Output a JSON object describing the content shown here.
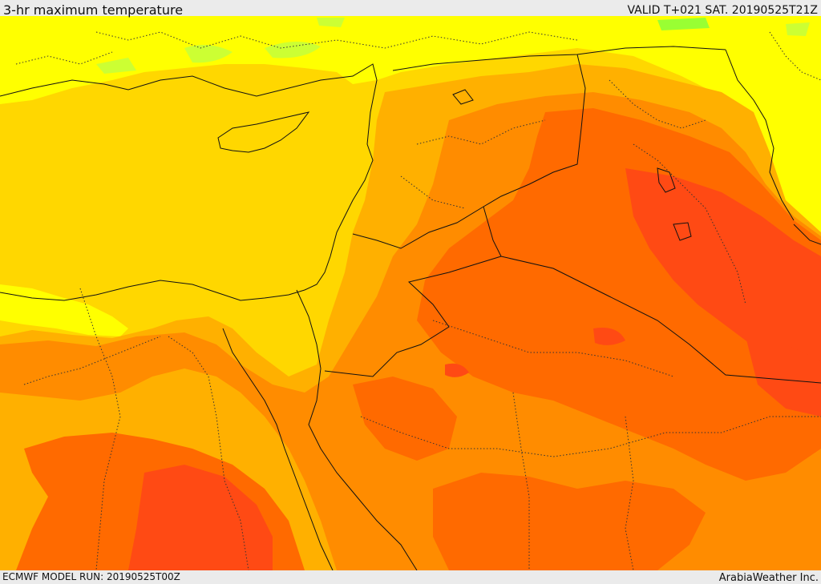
{
  "header": {
    "title": "3-hr maximum temperature",
    "valid": "VALID T+021 SAT. 20190525T21Z"
  },
  "footer": {
    "model_run": "ECMWF MODEL RUN: 20190525T00Z",
    "credit": "ArabiaWeather Inc."
  },
  "palette": {
    "pale_green": "#ccff33",
    "green": "#99ff33",
    "yellow": "#ffff00",
    "gold": "#ffd700",
    "light_orange": "#ffb000",
    "orange": "#ff8c00",
    "deep_orange": "#ff6a00",
    "red_orange": "#ff4a14",
    "border": "#111111"
  }
}
